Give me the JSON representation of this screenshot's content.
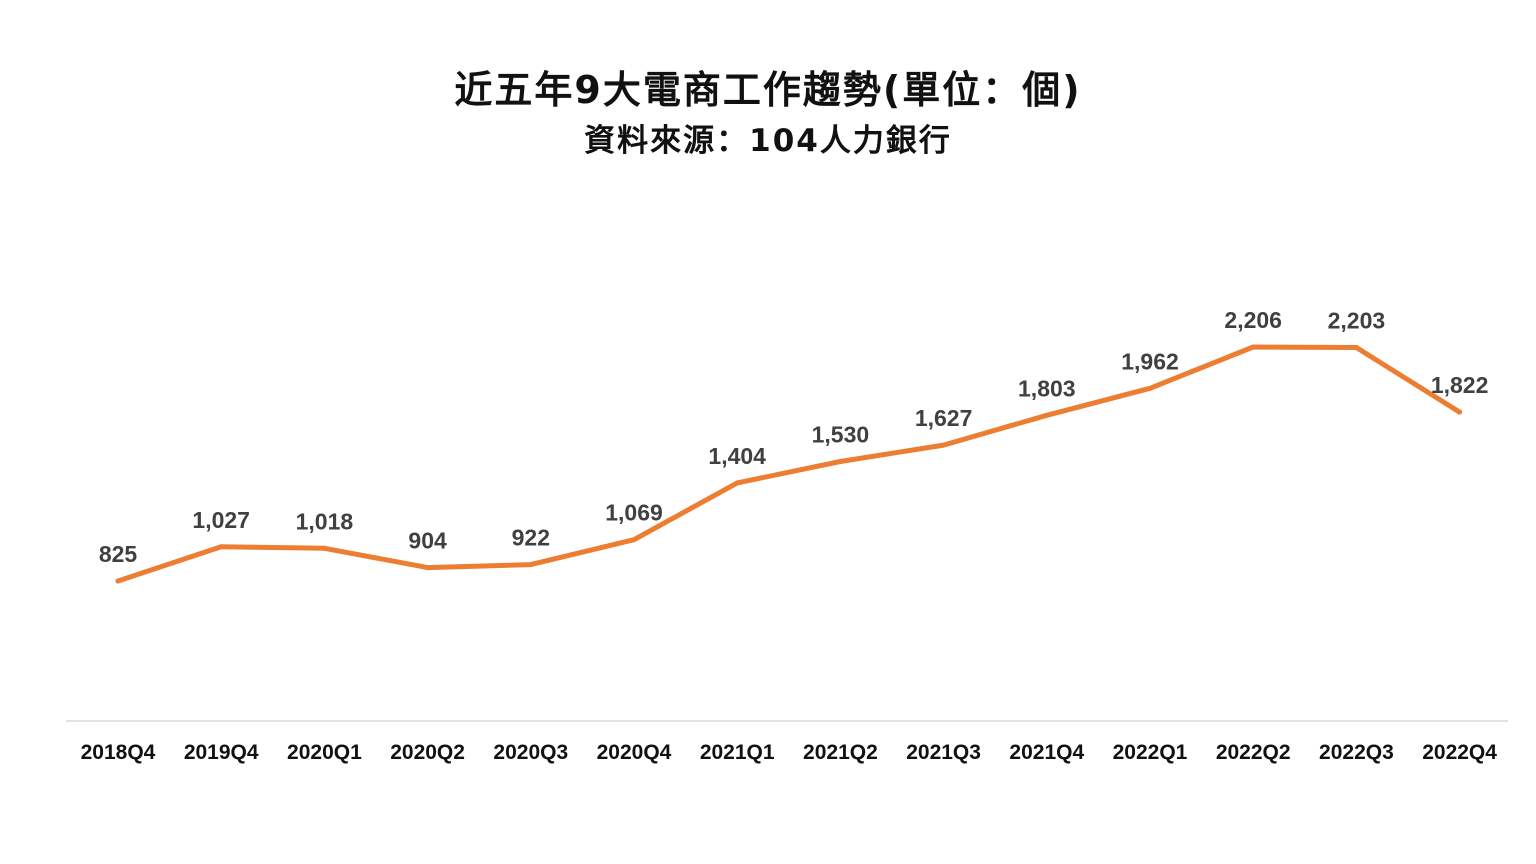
{
  "chart_data": {
    "type": "line",
    "title": "近五年9大電商工作趨勢(單位：個)",
    "subtitle": "資料來源：104人力銀行",
    "categories": [
      "2018Q4",
      "2019Q4",
      "2020Q1",
      "2020Q2",
      "2020Q3",
      "2020Q4",
      "2021Q1",
      "2021Q2",
      "2021Q3",
      "2021Q4",
      "2022Q1",
      "2022Q2",
      "2022Q3",
      "2022Q4"
    ],
    "series": [
      {
        "values": [
          825,
          1027,
          1018,
          904,
          922,
          1069,
          1404,
          1530,
          1627,
          1803,
          1962,
          2206,
          2203,
          1822
        ],
        "data_labels": [
          "825",
          "1,027",
          "1,018",
          "904",
          "922",
          "1,069",
          "1,404",
          "1,530",
          "1,627",
          "1,803",
          "1,962",
          "2,206",
          "2,203",
          "1,822"
        ],
        "color": "#ED7D31"
      }
    ],
    "xlabel": "",
    "ylabel": "",
    "grid": false,
    "legend": "none",
    "axis_color": "#D9D9D9"
  }
}
